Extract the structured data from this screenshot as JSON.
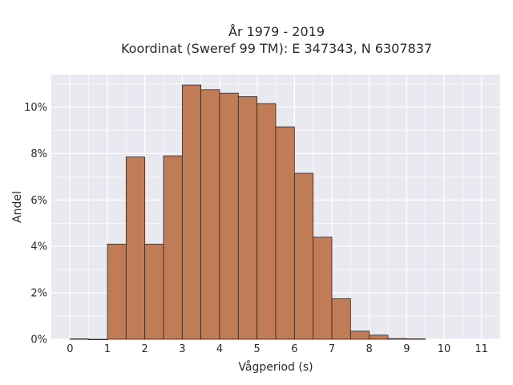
{
  "chart_data": {
    "type": "bar",
    "title_line1": "År 1979 - 2019",
    "title_line2": "Koordinat (Sweref 99 TM): E 347343, N 6307837",
    "xlabel": "Vågperiod (s)",
    "ylabel": "Andel",
    "x_ticks": [
      "0",
      "1",
      "2",
      "3",
      "4",
      "5",
      "6",
      "7",
      "8",
      "9",
      "10",
      "11"
    ],
    "y_ticks": [
      "0%",
      "2%",
      "4%",
      "6%",
      "8%",
      "10%"
    ],
    "xlim": [
      -0.5,
      11.5
    ],
    "ylim": [
      0,
      11.4
    ],
    "bin_width": 0.5,
    "bins": [
      {
        "start": 0.0,
        "value": 0.02
      },
      {
        "start": 0.5,
        "value": 0.0
      },
      {
        "start": 1.0,
        "value": 4.1
      },
      {
        "start": 1.5,
        "value": 7.85
      },
      {
        "start": 2.0,
        "value": 4.1
      },
      {
        "start": 2.5,
        "value": 7.9
      },
      {
        "start": 3.0,
        "value": 10.95
      },
      {
        "start": 3.5,
        "value": 10.75
      },
      {
        "start": 4.0,
        "value": 10.6
      },
      {
        "start": 4.5,
        "value": 10.45
      },
      {
        "start": 5.0,
        "value": 10.15
      },
      {
        "start": 5.5,
        "value": 9.15
      },
      {
        "start": 6.0,
        "value": 7.15
      },
      {
        "start": 6.5,
        "value": 4.4
      },
      {
        "start": 7.0,
        "value": 1.75
      },
      {
        "start": 7.5,
        "value": 0.35
      },
      {
        "start": 8.0,
        "value": 0.18
      },
      {
        "start": 8.5,
        "value": 0.03
      },
      {
        "start": 9.0,
        "value": 0.02
      }
    ],
    "colors": {
      "bar_fill": "#c07c57",
      "bar_edge": "#3b2418",
      "plot_bg": "#e9e9f1",
      "grid": "#ffffff"
    }
  }
}
